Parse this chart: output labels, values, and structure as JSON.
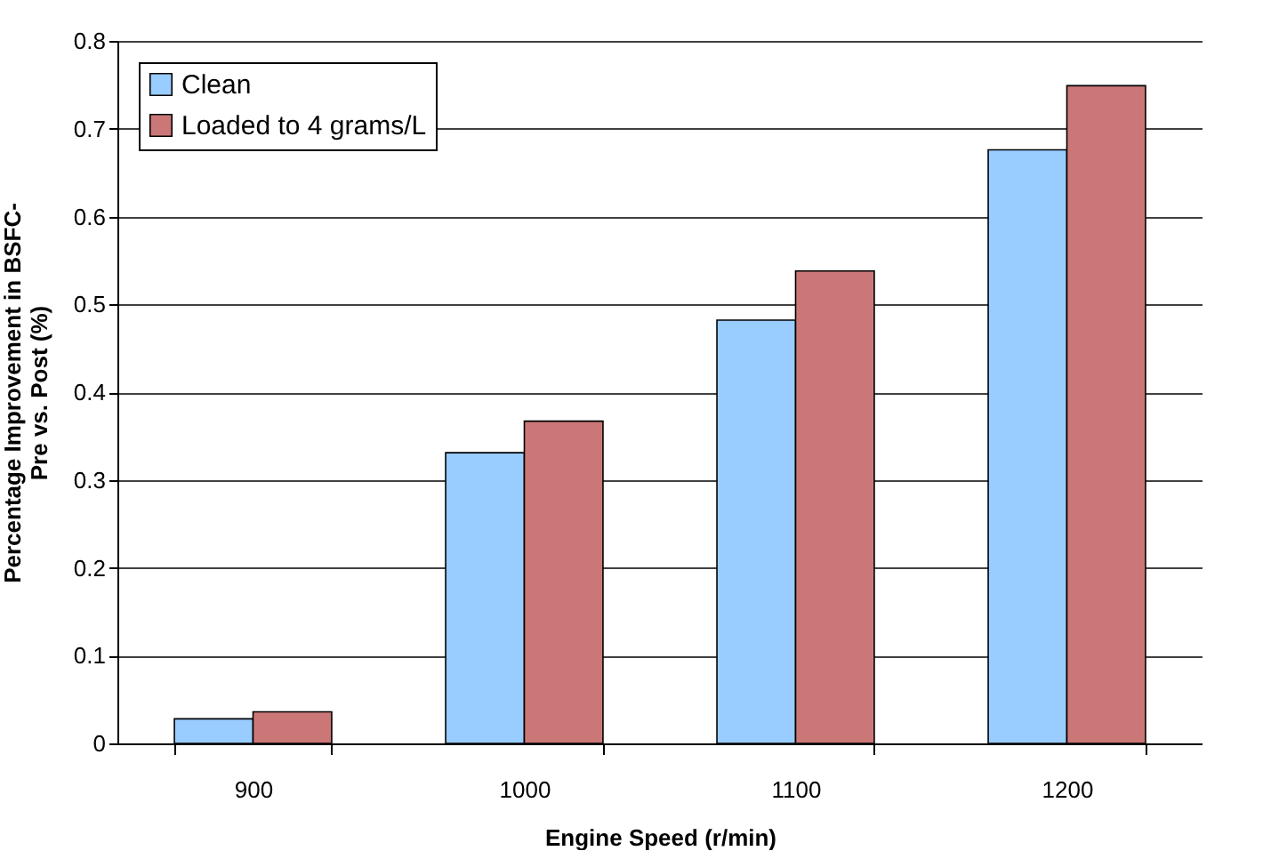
{
  "chart_data": {
    "type": "bar",
    "xlabel": "Engine Speed (r/min)",
    "ylabel": "Percentage Improvement in BSFC-\nPre vs. Post (%)",
    "categories": [
      "900",
      "1000",
      "1100",
      "1200"
    ],
    "series": [
      {
        "name": "Clean",
        "color": "#99ccff",
        "values": [
          0.028,
          0.331,
          0.482,
          0.676
        ]
      },
      {
        "name": "Loaded to 4 grams/L",
        "color": "#cc7777",
        "values": [
          0.036,
          0.367,
          0.538,
          0.749
        ]
      }
    ],
    "ylim": [
      0,
      0.8
    ],
    "yticks": [
      0,
      0.1,
      0.2,
      0.3,
      0.4,
      0.5,
      0.6,
      0.7,
      0.8
    ],
    "grid": "y",
    "legend": "top left"
  }
}
